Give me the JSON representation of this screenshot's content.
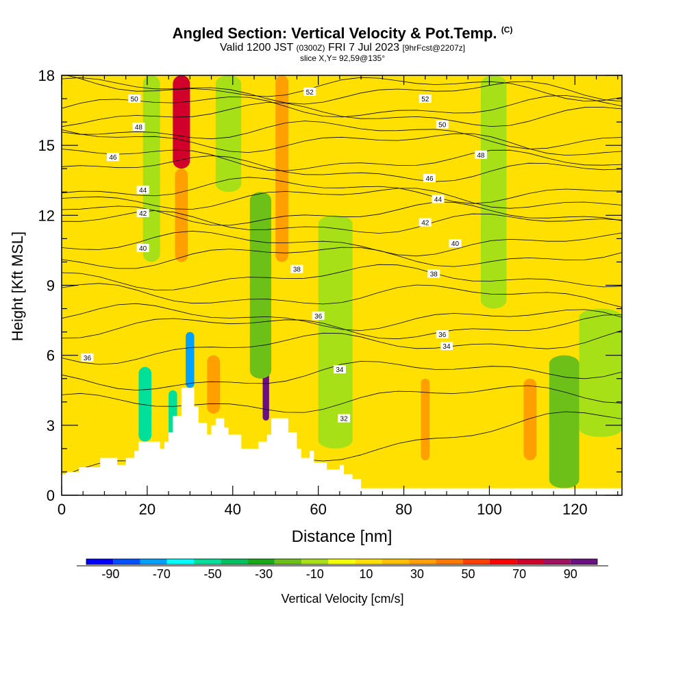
{
  "chart_data": {
    "type": "heatmap",
    "title": "Angled Section: Vertical Velocity & Pot.Temp.",
    "title_mark": "(C)",
    "subtitle_main": "Valid 1200 JST",
    "subtitle_utc": "(0300Z)",
    "subtitle_date": "FRI 7 Jul 2023",
    "subtitle_fcst": "[9hrFcst@2207z]",
    "slice_label": "slice X,Y= 92,59@135°",
    "xlabel": "Distance [nm]",
    "ylabel": "Height [Kft MSL]",
    "xlim": [
      0,
      131
    ],
    "ylim": [
      0,
      18
    ],
    "xticks": [
      0,
      20,
      40,
      60,
      80,
      100,
      120
    ],
    "yticks": [
      0,
      3,
      6,
      9,
      12,
      15,
      18
    ],
    "grid": false,
    "colorbar_label": "Vertical Velocity [cm/s]",
    "colorbar_ticks": [
      "-90",
      "-70",
      "-50",
      "-30",
      "-10",
      "10",
      "30",
      "50",
      "70",
      "90"
    ],
    "colorbar_colors": [
      "#0000ff",
      "#0050ff",
      "#00a0ff",
      "#00ffff",
      "#00e09a",
      "#00c060",
      "#18a818",
      "#6cc018",
      "#a8e018",
      "#f4ff00",
      "#ffe000",
      "#ffc000",
      "#ffa000",
      "#ff7800",
      "#ff4000",
      "#ff0000",
      "#d0002a",
      "#a01060",
      "#6a1080"
    ],
    "colorbar_range": [
      -100,
      100
    ],
    "terrain_kft": [
      [
        0,
        0.9
      ],
      [
        1,
        0.9
      ],
      [
        1,
        1.0
      ],
      [
        4,
        1.0
      ],
      [
        4,
        1.2
      ],
      [
        9,
        1.2
      ],
      [
        9,
        1.6
      ],
      [
        13,
        1.6
      ],
      [
        13,
        1.3
      ],
      [
        15,
        1.3
      ],
      [
        15,
        1.6
      ],
      [
        17,
        1.6
      ],
      [
        17,
        1.9
      ],
      [
        18,
        1.9
      ],
      [
        18,
        2.3
      ],
      [
        23,
        2.3
      ],
      [
        23,
        2.0
      ],
      [
        24,
        2.0
      ],
      [
        24,
        2.3
      ],
      [
        25,
        2.3
      ],
      [
        25,
        2.7
      ],
      [
        26,
        2.7
      ],
      [
        26,
        3.4
      ],
      [
        28,
        3.4
      ],
      [
        28,
        4.6
      ],
      [
        31,
        4.6
      ],
      [
        31,
        3.8
      ],
      [
        32,
        3.8
      ],
      [
        32,
        3.1
      ],
      [
        34,
        3.1
      ],
      [
        34,
        2.6
      ],
      [
        35,
        2.6
      ],
      [
        35,
        3.0
      ],
      [
        36,
        3.0
      ],
      [
        36,
        3.3
      ],
      [
        38,
        3.3
      ],
      [
        38,
        2.9
      ],
      [
        39,
        2.9
      ],
      [
        39,
        2.6
      ],
      [
        42,
        2.6
      ],
      [
        42,
        2.0
      ],
      [
        46,
        2.0
      ],
      [
        46,
        2.3
      ],
      [
        48,
        2.3
      ],
      [
        48,
        2.6
      ],
      [
        49,
        2.6
      ],
      [
        49,
        3.3
      ],
      [
        53,
        3.3
      ],
      [
        53,
        2.7
      ],
      [
        55,
        2.7
      ],
      [
        55,
        2.0
      ],
      [
        56,
        2.0
      ],
      [
        56,
        1.6
      ],
      [
        58,
        1.6
      ],
      [
        58,
        1.9
      ],
      [
        59,
        1.9
      ],
      [
        59,
        1.4
      ],
      [
        62,
        1.4
      ],
      [
        62,
        1.1
      ],
      [
        65,
        1.1
      ],
      [
        65,
        1.3
      ],
      [
        66,
        1.3
      ],
      [
        66,
        0.9
      ],
      [
        68,
        0.9
      ],
      [
        68,
        0.7
      ],
      [
        70,
        0.7
      ],
      [
        70,
        0.3
      ],
      [
        131,
        0.3
      ]
    ],
    "velocity_cells": [
      {
        "x": [
          26,
          30
        ],
        "y": [
          14,
          18
        ],
        "value": 70
      },
      {
        "x": [
          26.5,
          29.5
        ],
        "y": [
          10,
          14
        ],
        "value": 30
      },
      {
        "x": [
          50,
          53
        ],
        "y": [
          10,
          18
        ],
        "value": 30
      },
      {
        "x": [
          47,
          48.5
        ],
        "y": [
          3.2,
          7.5
        ],
        "value": 90
      },
      {
        "x": [
          29,
          31
        ],
        "y": [
          4.6,
          7.0
        ],
        "value": -70
      },
      {
        "x": [
          18,
          21
        ],
        "y": [
          2.3,
          5.5
        ],
        "value": -50
      },
      {
        "x": [
          25,
          27
        ],
        "y": [
          2.3,
          4.5
        ],
        "value": -50
      },
      {
        "x": [
          84,
          86
        ],
        "y": [
          1.5,
          5.0
        ],
        "value": 30
      },
      {
        "x": [
          108,
          111
        ],
        "y": [
          1.5,
          5.0
        ],
        "value": 30
      },
      {
        "x": [
          34,
          37
        ],
        "y": [
          3.5,
          6.0
        ],
        "value": 30
      },
      {
        "x": [
          19,
          23
        ],
        "y": [
          10,
          18
        ],
        "value": -10
      },
      {
        "x": [
          36,
          42
        ],
        "y": [
          13,
          18
        ],
        "value": -10
      },
      {
        "x": [
          44,
          49
        ],
        "y": [
          5,
          13
        ],
        "value": -20
      },
      {
        "x": [
          60,
          68
        ],
        "y": [
          2,
          12
        ],
        "value": -10
      },
      {
        "x": [
          98,
          104
        ],
        "y": [
          8,
          18
        ],
        "value": -10
      },
      {
        "x": [
          114,
          121
        ],
        "y": [
          0.3,
          6
        ],
        "value": -20
      },
      {
        "x": [
          121,
          131
        ],
        "y": [
          2.5,
          8
        ],
        "value": -10
      }
    ],
    "isentropes": [
      {
        "label": "32",
        "y_left": 0.8,
        "y_right": 3.3,
        "label_x": 66,
        "label_y": 3.3
      },
      {
        "label": "34",
        "y_left": 3.8,
        "y_right": 4.4,
        "label_x": 65,
        "label_y": 5.4
      },
      {
        "label": "34",
        "y_left": 4.8,
        "y_right": 5.6,
        "label_x": 90,
        "label_y": 6.4
      },
      {
        "label": "36",
        "y_left": 6.1,
        "y_right": 6.8,
        "label_x": 6,
        "label_y": 5.9
      },
      {
        "label": "36",
        "y_left": 7.2,
        "y_right": 7.2,
        "label_x": 60,
        "label_y": 7.7
      },
      {
        "label": "36",
        "y_left": 7.7,
        "y_right": 7.5,
        "label_x": 89,
        "label_y": 6.9
      },
      {
        "label": "38",
        "y_left": 8.6,
        "y_right": 8.5,
        "label_x": 55,
        "label_y": 9.7
      },
      {
        "label": "38",
        "y_left": 9.3,
        "y_right": 9.4,
        "label_x": 87,
        "label_y": 9.5
      },
      {
        "label": "40",
        "y_left": 10.2,
        "y_right": 10.3,
        "label_x": 19,
        "label_y": 10.6
      },
      {
        "label": "40",
        "y_left": 10.8,
        "y_right": 10.8,
        "label_x": 92,
        "label_y": 10.8
      },
      {
        "label": "42",
        "y_left": 11.7,
        "y_right": 11.6,
        "label_x": 19,
        "label_y": 12.1
      },
      {
        "label": "42",
        "y_left": 12.1,
        "y_right": 12.0,
        "label_x": 85,
        "label_y": 11.7
      },
      {
        "label": "44",
        "y_left": 12.8,
        "y_right": 12.7,
        "label_x": 19,
        "label_y": 13.1
      },
      {
        "label": "44",
        "y_left": 13.2,
        "y_right": 13.0,
        "label_x": 88,
        "label_y": 12.7
      },
      {
        "label": "46",
        "y_left": 14.1,
        "y_right": 13.8,
        "label_x": 12,
        "label_y": 14.5
      },
      {
        "label": "46",
        "y_left": 14.5,
        "y_right": 14.2,
        "label_x": 86,
        "label_y": 13.6
      },
      {
        "label": "48",
        "y_left": 15.4,
        "y_right": 14.9,
        "label_x": 18,
        "label_y": 15.8
      },
      {
        "label": "48",
        "y_left": 15.8,
        "y_right": 15.3,
        "label_x": 98,
        "label_y": 14.6
      },
      {
        "label": "50",
        "y_left": 16.3,
        "y_right": 16.3,
        "label_x": 17,
        "label_y": 17.0
      },
      {
        "label": "50",
        "y_left": 16.7,
        "y_right": 16.6,
        "label_x": 89,
        "label_y": 15.9
      },
      {
        "label": "52",
        "y_left": 17.4,
        "y_right": 17.2,
        "label_x": 58,
        "label_y": 17.3
      },
      {
        "label": "52",
        "y_left": 17.6,
        "y_right": 17.4,
        "label_x": 85,
        "label_y": 17.0
      }
    ]
  }
}
